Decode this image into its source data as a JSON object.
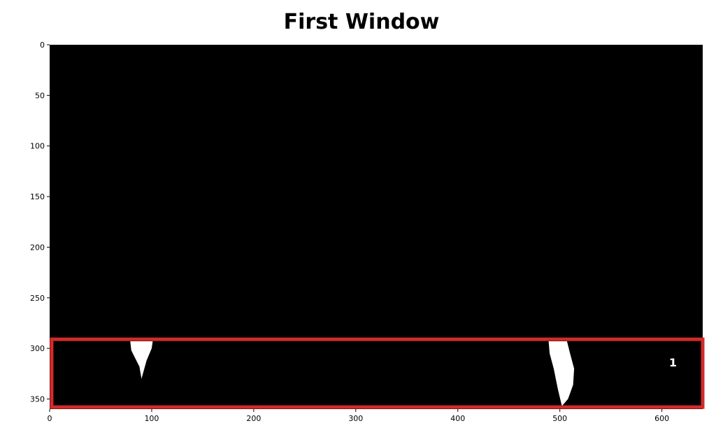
{
  "title": "First Window",
  "image": {
    "width": 640,
    "height": 360,
    "background": "#000000",
    "foreground": "#ffffff"
  },
  "axes": {
    "x_ticks": [
      0,
      100,
      200,
      300,
      400,
      500,
      600
    ],
    "y_ticks": [
      0,
      50,
      100,
      150,
      200,
      250,
      300,
      350
    ]
  },
  "lane_blobs": [
    {
      "name": "left-lane-blob",
      "points": [
        [
          79,
          293
        ],
        [
          101,
          293
        ],
        [
          100,
          300
        ],
        [
          95,
          312
        ],
        [
          90,
          330
        ],
        [
          88,
          318
        ],
        [
          80,
          302
        ]
      ]
    },
    {
      "name": "right-lane-blob",
      "points": [
        [
          489,
          293
        ],
        [
          507,
          293
        ],
        [
          510,
          305
        ],
        [
          514,
          320
        ],
        [
          513,
          336
        ],
        [
          508,
          350
        ],
        [
          502,
          357
        ],
        [
          498,
          340
        ],
        [
          494,
          320
        ],
        [
          490,
          305
        ]
      ]
    }
  ],
  "search_window": {
    "label": "1",
    "label_pos": [
      607,
      318
    ],
    "x_range": [
      2,
      640
    ],
    "y_range": [
      291,
      358
    ],
    "color": "#d42a2a"
  }
}
